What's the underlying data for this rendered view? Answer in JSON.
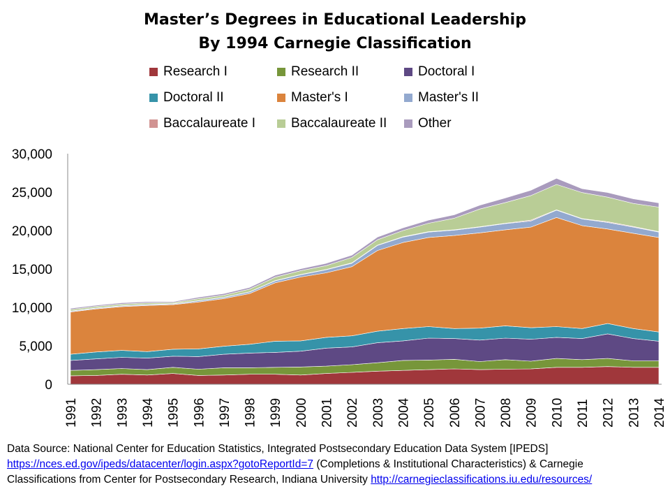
{
  "chart_data": {
    "type": "area",
    "stacked": true,
    "title_lines": [
      "Master’s Degrees in Educational Leadership",
      "By 1994 Carnegie Classification"
    ],
    "x": [
      "1991",
      "1992",
      "1993",
      "1994",
      "1995",
      "1996",
      "1997",
      "1998",
      "1999",
      "2000",
      "2001",
      "2002",
      "2003",
      "2004",
      "2005",
      "2006",
      "2007",
      "2008",
      "2009",
      "2010",
      "2011",
      "2012",
      "2013",
      "2014"
    ],
    "ylim": [
      0,
      30000
    ],
    "yticks": [
      0,
      5000,
      10000,
      15000,
      20000,
      25000,
      30000
    ],
    "ytick_labels": [
      "0",
      "5,000",
      "10,000",
      "15,000",
      "20,000",
      "25,000",
      "30,000"
    ],
    "legend_placement": "top",
    "series": [
      {
        "name": "Research I",
        "color": "#A0373B",
        "values": [
          1100,
          1150,
          1300,
          1200,
          1400,
          1150,
          1200,
          1300,
          1300,
          1200,
          1400,
          1550,
          1700,
          1800,
          1900,
          2000,
          1900,
          1950,
          2000,
          2200,
          2200,
          2300,
          2200,
          2200
        ]
      },
      {
        "name": "Research II",
        "color": "#77963A",
        "values": [
          700,
          750,
          750,
          700,
          800,
          800,
          950,
          850,
          900,
          1050,
          950,
          1000,
          1100,
          1300,
          1250,
          1250,
          1050,
          1250,
          1000,
          1150,
          1000,
          1050,
          850,
          850
        ]
      },
      {
        "name": "Doctoral I",
        "color": "#5E4984",
        "values": [
          1300,
          1400,
          1450,
          1500,
          1450,
          1650,
          1750,
          1900,
          1950,
          2050,
          2350,
          2300,
          2600,
          2550,
          2850,
          2700,
          2800,
          2800,
          2850,
          2750,
          2750,
          3200,
          2900,
          2550
        ]
      },
      {
        "name": "Doctoral II",
        "color": "#3693A9",
        "values": [
          800,
          900,
          900,
          850,
          900,
          1000,
          1050,
          1150,
          1450,
          1350,
          1400,
          1450,
          1500,
          1600,
          1500,
          1300,
          1550,
          1600,
          1500,
          1400,
          1300,
          1350,
          1300,
          1200
        ]
      },
      {
        "name": "Master's I",
        "color": "#DB843D",
        "values": [
          5500,
          5600,
          5700,
          6000,
          5800,
          6100,
          6200,
          6600,
          7600,
          8300,
          8400,
          9000,
          10500,
          11200,
          11600,
          12100,
          12400,
          12500,
          13100,
          14200,
          13400,
          12300,
          12400,
          12300
        ]
      },
      {
        "name": "Master's II",
        "color": "#93A9CF",
        "values": [
          100,
          100,
          100,
          100,
          100,
          150,
          150,
          200,
          250,
          300,
          400,
          450,
          650,
          700,
          700,
          700,
          750,
          800,
          800,
          950,
          850,
          850,
          800,
          700
        ]
      },
      {
        "name": "Baccalaureate I",
        "color": "#D19392",
        "values": [
          30,
          30,
          30,
          30,
          30,
          30,
          30,
          30,
          30,
          30,
          40,
          50,
          50,
          50,
          50,
          50,
          50,
          50,
          100,
          50,
          50,
          100,
          80,
          50
        ]
      },
      {
        "name": "Baccalaureate II",
        "color": "#B9CD96",
        "values": [
          200,
          200,
          200,
          200,
          150,
          250,
          250,
          350,
          450,
          500,
          500,
          700,
          700,
          800,
          1100,
          1500,
          2300,
          2700,
          3200,
          3300,
          3400,
          3200,
          3000,
          3200
        ]
      },
      {
        "name": "Other",
        "color": "#A99BBD",
        "values": [
          150,
          150,
          170,
          170,
          120,
          200,
          220,
          220,
          250,
          250,
          300,
          300,
          350,
          350,
          400,
          450,
          500,
          600,
          700,
          800,
          500,
          600,
          600,
          550
        ]
      }
    ],
    "xlabel": "",
    "ylabel": ""
  },
  "source": {
    "line1": "Data Source: National Center for Education Statistics, Integrated Postsecondary Education Data System [IPEDS]",
    "link1": "https://nces.ed.gov/ipeds/datacenter/login.aspx?gotoReportId=7",
    "line2_rest": " (Completions & Institutional Characteristics) & Carnegie",
    "line3": "Classifications from Center for Postsecondary Research, Indiana University ",
    "link2": "http://carnegieclassifications.iu.edu/resources/"
  }
}
